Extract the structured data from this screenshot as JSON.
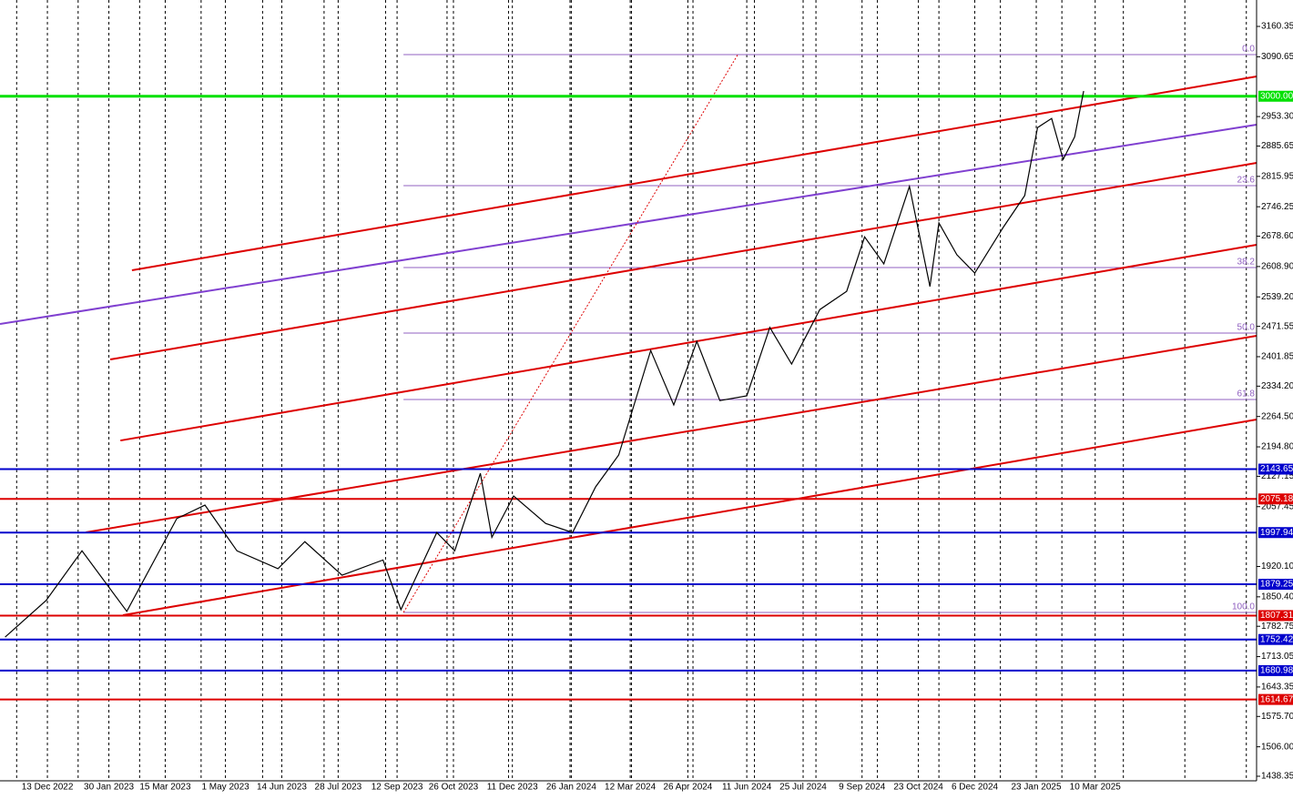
{
  "chart_data": {
    "type": "line",
    "color": "#000000",
    "x": [
      "2022-11-10",
      "2022-12-12",
      "2023-01-09",
      "2023-02-13",
      "2023-03-24",
      "2023-04-15",
      "2023-05-10",
      "2023-06-11",
      "2023-07-02",
      "2023-07-31",
      "2023-09-01",
      "2023-09-15",
      "2023-10-13",
      "2023-10-27",
      "2023-11-16",
      "2023-11-25",
      "2023-12-12",
      "2024-01-06",
      "2024-01-27",
      "2024-02-14",
      "2024-03-03",
      "2024-03-28",
      "2024-04-15",
      "2024-05-03",
      "2024-05-21",
      "2024-06-11",
      "2024-06-29",
      "2024-07-16",
      "2024-08-07",
      "2024-08-28",
      "2024-09-11",
      "2024-09-26",
      "2024-10-16",
      "2024-11-01",
      "2024-11-08",
      "2024-11-22",
      "2024-12-06",
      "2024-12-28",
      "2025-01-14",
      "2025-01-24",
      "2025-02-04",
      "2025-02-13",
      "2025-02-22",
      "2025-03-01"
    ],
    "values": [
      1758,
      1842,
      1956,
      1817,
      2030,
      2061,
      1956,
      1915,
      1977,
      1900,
      1935,
      1821,
      1998,
      1956,
      2134,
      1987,
      2082,
      2019,
      1998,
      2103,
      2176,
      2416,
      2291,
      2437,
      2301,
      2312,
      2469,
      2385,
      2510,
      2552,
      2677,
      2615,
      2793,
      2563,
      2709,
      2636,
      2594,
      2698,
      2772,
      2928,
      2949,
      2855,
      2907,
      3012
    ],
    "xlim": [
      "2022-11-06",
      "2025-07-14"
    ],
    "ylim": [
      1427.9,
      3221.0
    ],
    "grid": true,
    "xticks": [
      {
        "value": "2022-12-13",
        "label": "13 Dec 2022"
      },
      {
        "value": "2023-01-30",
        "label": "30 Jan 2023"
      },
      {
        "value": "2023-03-15",
        "label": "15 Mar 2023"
      },
      {
        "value": "2023-05-01",
        "label": "1 May 2023"
      },
      {
        "value": "2023-06-14",
        "label": "14 Jun 2023"
      },
      {
        "value": "2023-07-28",
        "label": "28 Jul 2023"
      },
      {
        "value": "2023-09-12",
        "label": "12 Sep 2023"
      },
      {
        "value": "2023-10-26",
        "label": "26 Oct 2023"
      },
      {
        "value": "2023-12-11",
        "label": "11 Dec 2023"
      },
      {
        "value": "2024-01-26",
        "label": "26 Jan 2024"
      },
      {
        "value": "2024-03-12",
        "label": "12 Mar 2024"
      },
      {
        "value": "2024-04-26",
        "label": "26 Apr 2024"
      },
      {
        "value": "2024-06-11",
        "label": "11 Jun 2024"
      },
      {
        "value": "2024-07-25",
        "label": "25 Jul 2024"
      },
      {
        "value": "2024-09-09",
        "label": "9 Sep 2024"
      },
      {
        "value": "2024-10-23",
        "label": "23 Oct 2024"
      },
      {
        "value": "2024-12-06",
        "label": "6 Dec 2024"
      },
      {
        "value": "2025-01-23",
        "label": "23 Jan 2025"
      },
      {
        "value": "2025-03-10",
        "label": "10 Mar 2025"
      }
    ],
    "yticks": [
      3160.35,
      3090.65,
      {
        "value": 2953.3,
        "label": "2953.30"
      },
      2885.65,
      2815.95,
      2746.25,
      {
        "value": 2678.6,
        "label": "2678.60"
      },
      {
        "value": 2608.9,
        "label": "2608.90"
      },
      {
        "value": 2539.2,
        "label": "2539.20"
      },
      2471.55,
      2401.85,
      {
        "value": 2334.2,
        "label": "2334.20"
      },
      {
        "value": 2264.5,
        "label": "2264.50"
      },
      {
        "value": 2194.8,
        "label": "2194.80"
      },
      2127.15,
      2057.45,
      {
        "value": 1920.1,
        "label": "1920.10"
      },
      {
        "value": 1850.4,
        "label": "1850.40"
      },
      1782.75,
      1713.05,
      1643.35,
      {
        "value": 1575.7,
        "label": "1575.70"
      },
      {
        "value": 1506.0,
        "label": "1506.00"
      },
      1438.35
    ],
    "levels": [
      {
        "value": 3000,
        "label": "3000.00",
        "color": "#00e000"
      },
      {
        "value": 2143.65,
        "color": "#0000cc"
      },
      {
        "value": 2075.18,
        "color": "#dd0000"
      },
      {
        "value": 1997.94,
        "color": "#0000cc"
      },
      {
        "value": 1879.25,
        "color": "#0000cc"
      },
      {
        "value": 1807.31,
        "color": "#dd0000"
      },
      {
        "value": 1752.42,
        "color": "#0000cc"
      },
      {
        "value": 1680.98,
        "color": "#0000cc"
      },
      {
        "value": 1614.67,
        "color": "#dd0000"
      }
    ],
    "trend_lines": [
      {
        "x": [
          "2023-02-17",
          "2025-07-14"
        ],
        "values": [
          2600.3,
          3045.4
        ],
        "color": "#dd0000"
      },
      {
        "x": [
          "2022-11-06",
          "2025-07-14"
        ],
        "values": [
          2477.0,
          2934.6
        ],
        "color": "#8040d0"
      },
      {
        "x": [
          "2023-01-31",
          "2025-07-14"
        ],
        "values": [
          2395.5,
          2846.9
        ],
        "color": "#dd0000"
      },
      {
        "x": [
          "2023-02-08",
          "2025-07-14"
        ],
        "values": [
          2209.4,
          2658.8
        ],
        "color": "#dd0000"
      },
      {
        "x": [
          "2023-01-12",
          "2025-07-14"
        ],
        "values": [
          1998.4,
          2449.8
        ],
        "color": "#dd0000"
      },
      {
        "x": [
          "2023-02-10",
          "2025-07-14"
        ],
        "values": [
          1808.2,
          2257.5
        ],
        "color": "#dd0000"
      },
      {
        "x": [
          "2023-09-17",
          "2024-06-04"
        ],
        "values": [
          1814.5,
          3095.6
        ],
        "color": "#dd0000",
        "dash": "dotted"
      }
    ],
    "fib_start": "2023-09-17",
    "fib_color": "#9060c0",
    "fib_levels": [
      {
        "value": 3095.6,
        "label": "0.0"
      },
      {
        "value": 2794.6,
        "label": "23.6"
      },
      {
        "value": 2606.5,
        "label": "38.2"
      },
      {
        "value": 2456.0,
        "label": "50.0"
      },
      {
        "value": 2303.5,
        "label": "61.8"
      },
      {
        "value": 1814.5,
        "label": "100.0"
      }
    ]
  }
}
